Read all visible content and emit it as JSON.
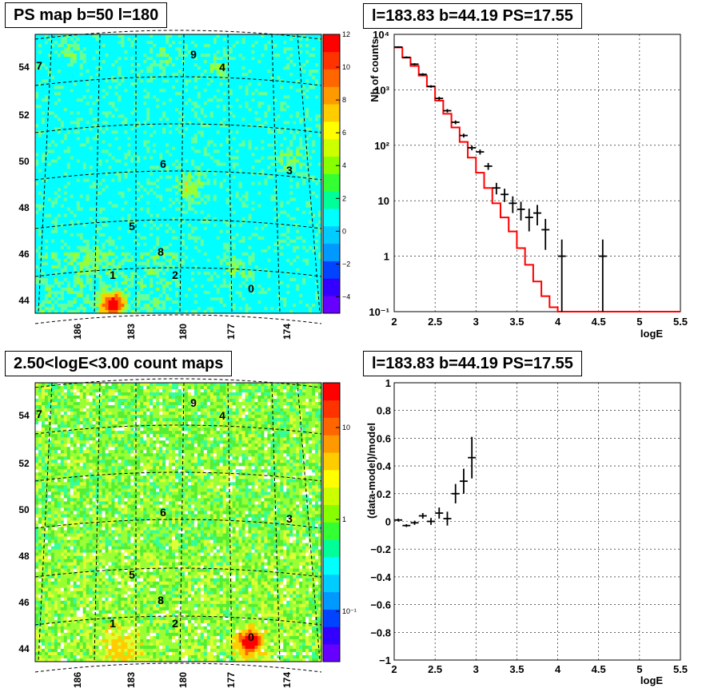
{
  "titles": {
    "ps_map": "PS map b=50 l=180",
    "spectrum": "l=183.83 b=44.19 PS=17.55",
    "count_map": "2.50<logE<3.00 count maps",
    "residual": "l=183.83 b=44.19 PS=17.55"
  },
  "chart_data": [
    {
      "type": "heatmap",
      "name_key": "ps_map",
      "title": "PS map b=50 l=180",
      "x_ticks": [
        "186",
        "183",
        "180",
        "177",
        "174"
      ],
      "y_ticks": [
        "44",
        "46",
        "48",
        "50",
        "52",
        "54"
      ],
      "colorbar_ticks": [
        "−4",
        "−2",
        "0",
        "2",
        "4",
        "6",
        "8",
        "10",
        "12"
      ],
      "colorbar_range": [
        -5,
        12
      ],
      "source_labels": [
        "0",
        "1",
        "2",
        "3",
        "4",
        "5",
        "6",
        "7",
        "8",
        "9"
      ],
      "colors": {
        "background_cyan": "#00ffff",
        "hot": "#ff0000"
      }
    },
    {
      "type": "line",
      "name_key": "spectrum",
      "title": "l=183.83 b=44.19 PS=17.55",
      "xlabel": "logE",
      "ylabel": "Nb of counts",
      "xlim": [
        2,
        5.5
      ],
      "ylim": [
        0.1,
        10000
      ],
      "y_scale": "log",
      "x_ticks": [
        "2",
        "2.5",
        "3",
        "3.5",
        "4",
        "4.5",
        "5",
        "5.5"
      ],
      "y_ticks": [
        "10⁻¹",
        "1",
        "10",
        "10²",
        "10³",
        "10⁴"
      ],
      "grid": true,
      "model_step": {
        "edges": [
          2.0,
          2.1,
          2.2,
          2.3,
          2.4,
          2.5,
          2.6,
          2.7,
          2.8,
          2.9,
          3.0,
          3.1,
          3.2,
          3.3,
          3.4,
          3.5,
          3.6,
          3.7,
          3.8,
          3.9,
          4.0,
          5.5
        ],
        "values": [
          5800,
          3800,
          2700,
          1800,
          1150,
          640,
          370,
          210,
          115,
          60,
          32,
          17,
          9,
          5,
          2.8,
          1.4,
          0.7,
          0.35,
          0.19,
          0.12,
          0.1
        ],
        "color": "#ff0000"
      },
      "data_points": [
        {
          "x": 2.05,
          "y": 5900,
          "err": [
            5700,
            6100
          ]
        },
        {
          "x": 2.15,
          "y": 3850,
          "err": [
            3700,
            4000
          ]
        },
        {
          "x": 2.25,
          "y": 2900,
          "err": [
            2780,
            3020
          ]
        },
        {
          "x": 2.35,
          "y": 1900,
          "err": [
            1810,
            1990
          ]
        },
        {
          "x": 2.45,
          "y": 1150,
          "err": [
            1090,
            1210
          ]
        },
        {
          "x": 2.55,
          "y": 700,
          "err": [
            650,
            750
          ]
        },
        {
          "x": 2.65,
          "y": 420,
          "err": [
            390,
            450
          ]
        },
        {
          "x": 2.75,
          "y": 260,
          "err": [
            240,
            280
          ]
        },
        {
          "x": 2.85,
          "y": 150,
          "err": [
            138,
            162
          ]
        },
        {
          "x": 2.95,
          "y": 90,
          "err": [
            81,
            99
          ]
        },
        {
          "x": 3.05,
          "y": 76,
          "err": [
            68,
            84
          ]
        },
        {
          "x": 3.15,
          "y": 42,
          "err": [
            36,
            48
          ]
        },
        {
          "x": 3.25,
          "y": 17,
          "err": [
            13,
            21
          ]
        },
        {
          "x": 3.35,
          "y": 13,
          "err": [
            9.5,
            16.5
          ]
        },
        {
          "x": 3.45,
          "y": 9,
          "err": [
            6,
            12
          ]
        },
        {
          "x": 3.55,
          "y": 7,
          "err": [
            4.4,
            9.6
          ]
        },
        {
          "x": 3.65,
          "y": 5,
          "err": [
            2.8,
            7.2
          ]
        },
        {
          "x": 3.75,
          "y": 6,
          "err": [
            3.6,
            8.4
          ]
        },
        {
          "x": 3.85,
          "y": 3,
          "err": [
            1.3,
            4.7
          ]
        },
        {
          "x": 4.05,
          "y": 1,
          "err": [
            0.1,
            2
          ]
        },
        {
          "x": 4.55,
          "y": 1,
          "err": [
            0.1,
            2
          ]
        }
      ]
    },
    {
      "type": "heatmap",
      "name_key": "count_map",
      "title": "2.50<logE<3.00 count maps",
      "x_ticks": [
        "186",
        "183",
        "180",
        "177",
        "174"
      ],
      "y_ticks": [
        "44",
        "46",
        "48",
        "50",
        "52",
        "54"
      ],
      "colorbar_ticks": [
        "10⁻¹",
        "1",
        "10"
      ],
      "source_labels": [
        "0",
        "1",
        "2",
        "3",
        "4",
        "5",
        "6",
        "7",
        "8",
        "9"
      ]
    },
    {
      "type": "scatter",
      "name_key": "residual",
      "title": "l=183.83 b=44.19 PS=17.55",
      "xlabel": "logE",
      "ylabel": "(data-model)/model",
      "xlim": [
        2,
        5.5
      ],
      "ylim": [
        -1,
        1
      ],
      "x_ticks": [
        "2",
        "2.5",
        "3",
        "3.5",
        "4",
        "4.5",
        "5",
        "5.5"
      ],
      "y_ticks": [
        "−1",
        "−0.8",
        "−0.6",
        "−0.4",
        "−0.2",
        "0",
        "0.2",
        "0.4",
        "0.6",
        "0.8",
        "1"
      ],
      "grid": true,
      "points": [
        {
          "x": 2.05,
          "y": 0.01,
          "err": 0.01
        },
        {
          "x": 2.15,
          "y": -0.03,
          "err": 0.01
        },
        {
          "x": 2.25,
          "y": -0.01,
          "err": 0.015
        },
        {
          "x": 2.35,
          "y": 0.04,
          "err": 0.02
        },
        {
          "x": 2.45,
          "y": 0.0,
          "err": 0.025
        },
        {
          "x": 2.55,
          "y": 0.06,
          "err": 0.04
        },
        {
          "x": 2.65,
          "y": 0.02,
          "err": 0.05
        },
        {
          "x": 2.75,
          "y": 0.2,
          "err": 0.07
        },
        {
          "x": 2.85,
          "y": 0.29,
          "err": 0.09
        },
        {
          "x": 2.95,
          "y": 0.46,
          "err": 0.15
        }
      ]
    }
  ]
}
